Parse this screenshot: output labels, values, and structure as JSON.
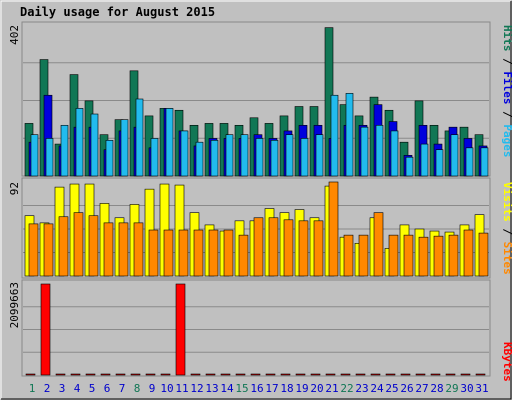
{
  "chart_data": {
    "type": "bar",
    "title": "Daily usage for August 2015",
    "colors": {
      "hits": "#117755",
      "files": "#0000dd",
      "pages": "#22bbee",
      "visits": "#ffff00",
      "sites": "#ff8800",
      "kbytes": "#ff0000",
      "title": "#0000cc",
      "weekend_day": "#117755",
      "weekday_day": "#0000cc"
    },
    "days": [
      "1",
      "2",
      "3",
      "4",
      "5",
      "6",
      "7",
      "8",
      "9",
      "10",
      "11",
      "12",
      "13",
      "14",
      "15",
      "16",
      "17",
      "18",
      "19",
      "20",
      "21",
      "22",
      "23",
      "24",
      "25",
      "26",
      "27",
      "28",
      "29",
      "30",
      "31"
    ],
    "weekend_days": [
      1,
      8,
      15,
      22,
      29
    ],
    "hits_panel": {
      "ymax_label": "402",
      "ymax": 402,
      "legend": [
        {
          "key": "hits",
          "text": "Hits"
        },
        {
          "key": "files",
          "text": "Files"
        },
        {
          "key": "pages",
          "text": "Pages"
        }
      ],
      "series": [
        {
          "name": "Hits",
          "key": "hits",
          "values": [
            140,
            310,
            85,
            270,
            200,
            110,
            150,
            280,
            160,
            180,
            175,
            135,
            140,
            140,
            135,
            155,
            140,
            160,
            185,
            185,
            395,
            190,
            160,
            210,
            175,
            90,
            200,
            135,
            120,
            130,
            110
          ]
        },
        {
          "name": "Files",
          "key": "files",
          "values": [
            90,
            215,
            80,
            130,
            130,
            70,
            120,
            130,
            75,
            180,
            120,
            80,
            100,
            100,
            100,
            110,
            100,
            120,
            135,
            135,
            100,
            135,
            135,
            190,
            145,
            55,
            135,
            85,
            130,
            100,
            80
          ]
        },
        {
          "name": "Pages",
          "key": "pages",
          "values": [
            110,
            100,
            135,
            180,
            165,
            95,
            150,
            205,
            100,
            180,
            120,
            90,
            95,
            110,
            110,
            100,
            95,
            110,
            100,
            110,
            215,
            220,
            130,
            135,
            120,
            50,
            85,
            70,
            110,
            75,
            75
          ]
        }
      ]
    },
    "visits_panel": {
      "ymax_label": "92",
      "ymax": 92,
      "legend": [
        {
          "key": "visits",
          "text": "Visits"
        },
        {
          "key": "sites",
          "text": "Sites"
        }
      ],
      "series": [
        {
          "name": "Visits",
          "key": "visits",
          "values": [
            59,
            52,
            87,
            90,
            90,
            71,
            57,
            70,
            85,
            90,
            89,
            62,
            50,
            44,
            54,
            54,
            66,
            62,
            65,
            57,
            88,
            38,
            32,
            57,
            27,
            50,
            46,
            44,
            43,
            50,
            60
          ]
        },
        {
          "name": "Sites",
          "key": "sites",
          "values": [
            51,
            51,
            58,
            62,
            59,
            52,
            52,
            52,
            45,
            45,
            45,
            45,
            45,
            45,
            40,
            57,
            57,
            55,
            54,
            54,
            92,
            40,
            40,
            62,
            40,
            40,
            38,
            39,
            40,
            45,
            42
          ]
        }
      ]
    },
    "kbytes_panel": {
      "ymax_label": "2099663",
      "ymax": 2099663,
      "legend": [
        {
          "key": "kbytes",
          "text": "KBytes"
        }
      ],
      "series": [
        {
          "name": "KBytes",
          "key": "kbytes",
          "values": [
            3000,
            2099663,
            3000,
            3000,
            3000,
            3000,
            3000,
            3000,
            3000,
            3000,
            2099663,
            3000,
            3000,
            3000,
            3000,
            3000,
            3000,
            3000,
            3000,
            3000,
            3000,
            3000,
            3000,
            3000,
            3000,
            3000,
            3000,
            3000,
            3000,
            3000,
            3000
          ]
        }
      ]
    }
  }
}
